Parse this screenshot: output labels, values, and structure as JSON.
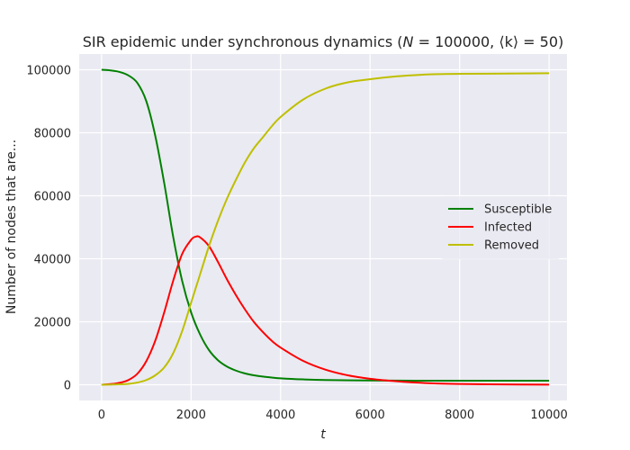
{
  "chart_data": {
    "type": "line",
    "title": "SIR epidemic under synchronous dynamics (N = 100000, ⟨k⟩ = 50)",
    "title_parts": {
      "prefix": "SIR epidemic under synchronous dynamics (",
      "n_symbol": "N",
      "n_value": " = 100000, ",
      "k_symbol": "⟨k⟩",
      "k_value": " = 50)"
    },
    "xlabel": "t",
    "ylabel": "Number of nodes that are...",
    "xlim": [
      -500,
      10400
    ],
    "ylim": [
      -5000,
      105000
    ],
    "xticks": [
      0,
      2000,
      4000,
      6000,
      8000,
      10000
    ],
    "xtick_labels": [
      "0",
      "2000",
      "4000",
      "6000",
      "8000",
      "10000"
    ],
    "yticks": [
      0,
      20000,
      40000,
      60000,
      80000,
      100000
    ],
    "ytick_labels": [
      "0",
      "20000",
      "40000",
      "60000",
      "80000",
      "100000"
    ],
    "grid": true,
    "background": "#eaeaf2",
    "legend_position": "center-right",
    "series": [
      {
        "name": "Susceptible",
        "color": "#008000",
        "x": [
          0,
          200,
          400,
          600,
          800,
          1000,
          1200,
          1400,
          1600,
          1800,
          2000,
          2200,
          2400,
          2600,
          2800,
          3000,
          3200,
          3400,
          3600,
          3800,
          4000,
          4500,
          5000,
          6000,
          7000,
          8000,
          9000,
          10000
        ],
        "y": [
          100000,
          99800,
          99300,
          98200,
          95800,
          90000,
          79000,
          64000,
          47000,
          33000,
          23000,
          16000,
          11000,
          7800,
          5800,
          4500,
          3600,
          3000,
          2600,
          2300,
          2050,
          1700,
          1500,
          1350,
          1300,
          1300,
          1300,
          1300
        ]
      },
      {
        "name": "Infected",
        "color": "#ff0000",
        "x": [
          0,
          200,
          400,
          600,
          800,
          1000,
          1200,
          1400,
          1600,
          1800,
          2000,
          2100,
          2200,
          2400,
          2600,
          2800,
          3000,
          3200,
          3400,
          3600,
          3800,
          4000,
          4500,
          5000,
          5500,
          6000,
          6500,
          7000,
          7500,
          8000,
          9000,
          10000
        ],
        "y": [
          0,
          200,
          600,
          1500,
          3500,
          7500,
          14000,
          23000,
          33000,
          41500,
          46000,
          47000,
          46800,
          44000,
          39000,
          33500,
          28500,
          24000,
          20000,
          16800,
          14000,
          11800,
          7600,
          4800,
          3000,
          1900,
          1200,
          700,
          400,
          250,
          100,
          40
        ]
      },
      {
        "name": "Removed",
        "color": "#bfbf00",
        "x": [
          0,
          200,
          400,
          600,
          800,
          1000,
          1200,
          1400,
          1600,
          1800,
          2000,
          2200,
          2400,
          2600,
          2800,
          3000,
          3200,
          3400,
          3600,
          3800,
          4000,
          4500,
          5000,
          5500,
          6000,
          6500,
          7000,
          7500,
          8000,
          9000,
          10000
        ],
        "y": [
          0,
          50,
          150,
          300,
          700,
          1500,
          3000,
          5500,
          10000,
          17000,
          26000,
          35000,
          44000,
          52000,
          59000,
          65000,
          70500,
          75000,
          78500,
          82000,
          85000,
          90500,
          94000,
          96000,
          97000,
          97800,
          98300,
          98600,
          98700,
          98800,
          98900
        ]
      }
    ]
  }
}
